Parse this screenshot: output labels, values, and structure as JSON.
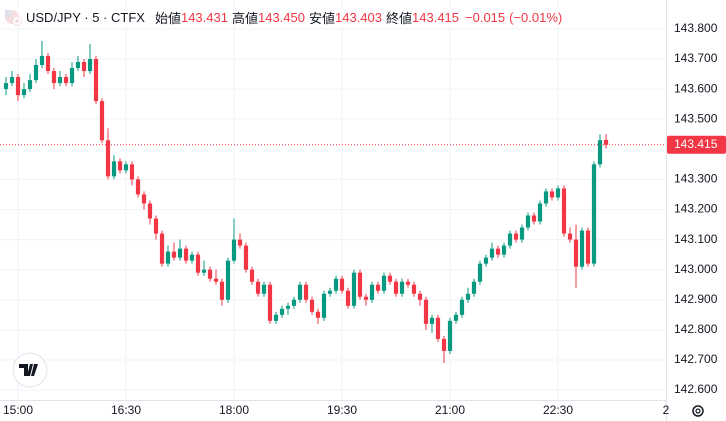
{
  "header": {
    "symbol": "USD/JPY · 5 · CTFX",
    "items": [
      {
        "label": "始値",
        "value": "143.431"
      },
      {
        "label": "高値",
        "value": "143.450"
      },
      {
        "label": "安値",
        "value": "143.403"
      },
      {
        "label": "終値",
        "value": "143.415"
      }
    ],
    "change": "−0.015",
    "change_pct": "(−0.01%)"
  },
  "chart_data": {
    "type": "candlestick",
    "open": [
      143.6,
      143.62,
      143.64,
      143.58,
      143.6,
      143.63,
      143.68,
      143.71,
      143.66,
      143.62,
      143.64,
      143.62,
      143.67,
      143.69,
      143.66,
      143.7,
      143.56,
      143.43,
      143.31,
      143.36,
      143.33,
      143.35,
      143.3,
      143.25,
      143.22,
      143.17,
      143.12,
      143.02,
      143.06,
      143.04,
      143.07,
      143.03,
      143.05,
      142.99,
      143.0,
      142.97,
      142.96,
      142.9,
      143.03,
      143.1,
      143.08,
      143.0,
      142.96,
      142.92,
      142.95,
      142.83,
      142.85,
      142.87,
      142.88,
      142.9,
      142.95,
      142.9,
      142.86,
      142.84,
      142.92,
      142.93,
      142.97,
      142.93,
      142.88,
      142.99,
      142.91,
      142.9,
      142.95,
      142.93,
      142.98,
      142.96,
      142.92,
      142.96,
      142.95,
      142.92,
      142.9,
      142.82,
      142.84,
      142.77,
      142.73,
      142.83,
      142.85,
      142.9,
      142.92,
      142.96,
      143.02,
      143.04,
      143.07,
      143.05,
      143.08,
      143.12,
      143.1,
      143.14,
      143.18,
      143.16,
      143.22,
      143.26,
      143.24,
      143.27,
      143.12,
      143.1,
      143.01,
      143.13,
      143.02,
      143.35,
      143.431
    ],
    "high": [
      143.64,
      143.66,
      143.65,
      143.62,
      143.65,
      143.7,
      143.76,
      143.72,
      143.67,
      143.66,
      143.65,
      143.69,
      143.71,
      143.7,
      143.75,
      143.71,
      143.57,
      143.47,
      143.38,
      143.37,
      143.36,
      143.36,
      143.31,
      143.26,
      143.23,
      143.18,
      143.13,
      143.08,
      143.09,
      143.1,
      143.08,
      143.06,
      143.06,
      143.03,
      143.01,
      143.0,
      142.97,
      143.04,
      143.17,
      143.12,
      143.09,
      143.01,
      142.97,
      142.96,
      142.96,
      142.86,
      142.88,
      142.89,
      142.91,
      142.96,
      142.96,
      142.91,
      142.87,
      142.93,
      142.94,
      142.98,
      142.98,
      142.94,
      143.0,
      143.0,
      142.92,
      142.96,
      142.96,
      142.99,
      142.99,
      142.97,
      142.97,
      142.97,
      142.96,
      142.93,
      142.91,
      142.85,
      142.85,
      142.78,
      142.84,
      142.86,
      142.91,
      142.94,
      142.97,
      143.03,
      143.05,
      143.09,
      143.08,
      143.09,
      143.13,
      143.13,
      143.15,
      143.19,
      143.19,
      143.23,
      143.27,
      143.27,
      143.28,
      143.28,
      143.14,
      143.15,
      143.14,
      143.14,
      143.36,
      143.45,
      143.45
    ],
    "low": [
      143.58,
      143.61,
      143.56,
      143.57,
      143.59,
      143.62,
      143.67,
      143.65,
      143.6,
      143.61,
      143.61,
      143.61,
      143.66,
      143.64,
      143.65,
      143.55,
      143.42,
      143.3,
      143.3,
      143.32,
      143.32,
      143.28,
      143.24,
      143.2,
      143.15,
      143.1,
      143.01,
      143.01,
      143.03,
      143.03,
      143.02,
      143.02,
      142.98,
      142.98,
      142.96,
      142.95,
      142.88,
      142.89,
      143.02,
      143.07,
      142.99,
      142.95,
      142.91,
      142.91,
      142.82,
      142.82,
      142.84,
      142.85,
      142.87,
      142.89,
      142.89,
      142.85,
      142.82,
      142.83,
      142.91,
      142.92,
      142.92,
      142.87,
      142.87,
      142.9,
      142.88,
      142.89,
      142.92,
      142.92,
      142.95,
      142.91,
      142.91,
      142.94,
      142.91,
      142.88,
      142.8,
      142.79,
      142.76,
      142.69,
      142.72,
      142.82,
      142.84,
      142.89,
      142.91,
      142.95,
      143.01,
      143.03,
      143.04,
      143.04,
      143.07,
      143.09,
      143.09,
      143.13,
      143.15,
      143.15,
      143.21,
      143.23,
      143.23,
      143.11,
      143.09,
      142.94,
      143.0,
      143.01,
      143.01,
      143.34,
      143.403
    ],
    "close": [
      143.62,
      143.64,
      143.58,
      143.6,
      143.63,
      143.68,
      143.71,
      143.66,
      143.62,
      143.64,
      143.62,
      143.67,
      143.69,
      143.66,
      143.7,
      143.56,
      143.43,
      143.31,
      143.36,
      143.33,
      143.35,
      143.3,
      143.25,
      143.22,
      143.17,
      143.12,
      143.02,
      143.06,
      143.04,
      143.07,
      143.03,
      143.05,
      142.99,
      143.0,
      142.97,
      142.96,
      142.9,
      143.03,
      143.1,
      143.08,
      143.0,
      142.96,
      142.92,
      142.95,
      142.83,
      142.85,
      142.87,
      142.88,
      142.9,
      142.95,
      142.9,
      142.86,
      142.84,
      142.92,
      142.93,
      142.97,
      142.93,
      142.88,
      142.99,
      142.91,
      142.9,
      142.95,
      142.93,
      142.98,
      142.96,
      142.92,
      142.96,
      142.95,
      142.92,
      142.9,
      142.82,
      142.84,
      142.77,
      142.73,
      142.83,
      142.85,
      142.9,
      142.92,
      142.96,
      143.02,
      143.04,
      143.07,
      143.05,
      143.08,
      143.12,
      143.1,
      143.14,
      143.18,
      143.16,
      143.22,
      143.26,
      143.24,
      143.27,
      143.12,
      143.1,
      143.01,
      143.13,
      143.02,
      143.35,
      143.43,
      143.415
    ],
    "last_price": {
      "value": 143.415,
      "label": "143.415"
    },
    "up_color": "#089981",
    "down_color": "#f23645",
    "xlim": [
      -1,
      110
    ],
    "xticks": [
      {
        "value": 2,
        "label": "15:00"
      },
      {
        "value": 20,
        "label": "16:30"
      },
      {
        "value": 38,
        "label": "18:00"
      },
      {
        "value": 56,
        "label": "19:30"
      },
      {
        "value": 74,
        "label": "21:00"
      },
      {
        "value": 92,
        "label": "22:30"
      },
      {
        "value": 110,
        "label": "2"
      }
    ],
    "ylim": [
      142.567,
      143.896
    ],
    "yticks": [
      {
        "value": 142.6,
        "label": "142.600"
      },
      {
        "value": 142.7,
        "label": "142.700"
      },
      {
        "value": 142.8,
        "label": "142.800"
      },
      {
        "value": 142.9,
        "label": "142.900"
      },
      {
        "value": 143.0,
        "label": "143.000"
      },
      {
        "value": 143.1,
        "label": "143.100"
      },
      {
        "value": 143.2,
        "label": "143.200"
      },
      {
        "value": 143.3,
        "label": "143.300"
      },
      {
        "value": 143.5,
        "label": "143.500"
      },
      {
        "value": 143.6,
        "label": "143.600"
      },
      {
        "value": 143.7,
        "label": "143.700"
      },
      {
        "value": 143.8,
        "label": "143.800"
      }
    ],
    "grid": true
  }
}
